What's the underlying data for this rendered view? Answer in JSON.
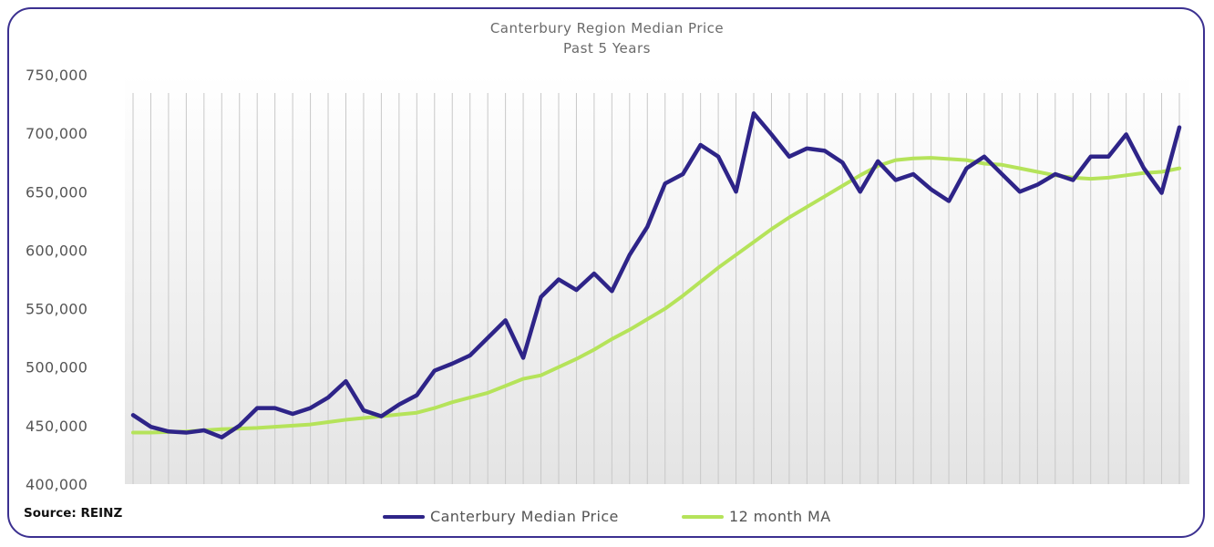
{
  "source_note": "Source: REINZ",
  "chart_data": {
    "type": "line",
    "title": "Canterbury Region Median Price",
    "subtitle": "Past 5 Years",
    "ylim": [
      400000,
      750000
    ],
    "yticks": [
      "400,000",
      "450,000",
      "500,000",
      "550,000",
      "600,000",
      "650,000",
      "700,000",
      "750,000"
    ],
    "ytick_values": [
      400000,
      450000,
      500000,
      550000,
      600000,
      650000,
      700000,
      750000
    ],
    "grid": "vertical lines at each month",
    "legend_position": "bottom",
    "colors": {
      "median": "#2e2488",
      "ma": "#b5e35a",
      "border": "#3b3090",
      "gridline": "#c8c8c8"
    },
    "series": [
      {
        "name": "Canterbury Median Price",
        "values": [
          459000,
          449000,
          445000,
          444000,
          446000,
          440000,
          450000,
          465000,
          465000,
          460000,
          465000,
          474000,
          488000,
          463000,
          458000,
          468000,
          476000,
          497000,
          503000,
          510000,
          525000,
          540000,
          508000,
          560000,
          575000,
          566000,
          580000,
          565000,
          596000,
          620000,
          657000,
          665000,
          690000,
          680000,
          650000,
          717000,
          699000,
          680000,
          687000,
          685000,
          675000,
          650000,
          676000,
          660000,
          665000,
          652000,
          642000,
          670000,
          680000,
          665000,
          650000,
          656000,
          665000,
          660000,
          680000,
          680000,
          699000,
          670000,
          649000,
          705000
        ]
      },
      {
        "name": "12 month MA",
        "values": [
          444000,
          444000,
          444500,
          445000,
          446000,
          447000,
          447500,
          448000,
          449000,
          450000,
          451000,
          453000,
          455000,
          456500,
          458000,
          459500,
          461000,
          465000,
          470000,
          474000,
          478000,
          484000,
          490000,
          493000,
          500000,
          507000,
          515000,
          524000,
          532000,
          541000,
          550000,
          561000,
          573000,
          585000,
          596000,
          607000,
          618000,
          628000,
          637000,
          646000,
          655000,
          664000,
          672000,
          677000,
          678500,
          679000,
          678000,
          677000,
          674000,
          673000,
          670000,
          667000,
          664000,
          662000,
          661000,
          662000,
          664000,
          666000,
          667000,
          670000
        ]
      }
    ]
  }
}
